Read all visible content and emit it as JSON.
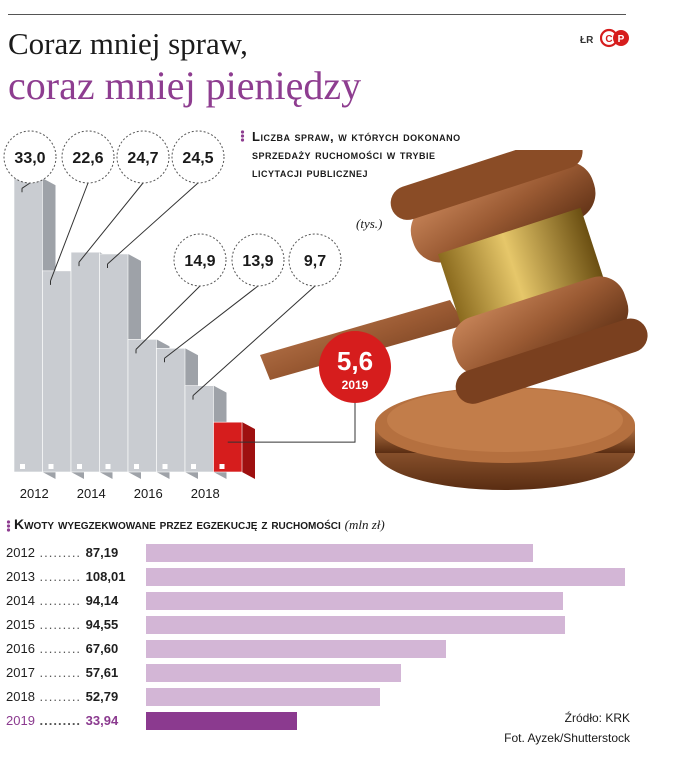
{
  "header": {
    "title_line1": "Coraz mniej spraw,",
    "title_line2": "coraz mniej pieniędzy",
    "author": "ŁR",
    "logo": "CP"
  },
  "colors": {
    "accent_purple": "#8e3d90",
    "bar_light_purple": "#d3b6d6",
    "highlight_red": "#d61d1d",
    "bar_grey": "#c9ccd1"
  },
  "chart_data": [
    {
      "type": "bar",
      "title": "Liczba spraw, w których dokonano sprzedaży ruchomości w trybie licytacji publicznej",
      "unit": "(tys.)",
      "categories": [
        "2012",
        "2013",
        "2014",
        "2015",
        "2016",
        "2017",
        "2018",
        "2019"
      ],
      "values": [
        33.0,
        22.6,
        24.7,
        24.5,
        14.9,
        13.9,
        9.7,
        5.6
      ],
      "value_labels": [
        "33,0",
        "22,6",
        "24,7",
        "24,5",
        "14,9",
        "13,9",
        "9,7",
        "5,6"
      ],
      "axis_tick_labels": [
        "2012",
        "2014",
        "2016",
        "2018"
      ],
      "highlight": {
        "label": "2019",
        "value": "5,6"
      }
    },
    {
      "type": "bar",
      "orientation": "horizontal",
      "title": "Kwoty wyegzekwowane przez egzekucję z ruchomości",
      "unit": "(mln zł)",
      "categories": [
        "2012",
        "2013",
        "2014",
        "2015",
        "2016",
        "2017",
        "2018",
        "2019"
      ],
      "values": [
        87.19,
        108.01,
        94.14,
        94.55,
        67.6,
        57.61,
        52.79,
        33.94
      ],
      "value_labels": [
        "87,19",
        "108,01",
        "94,14",
        "94,55",
        "67,60",
        "57,61",
        "52,79",
        "33,94"
      ],
      "highlight_category": "2019"
    }
  ],
  "footer": {
    "source": "Źródło: KRK",
    "photo": "Fot. Ayzek/Shutterstock"
  }
}
